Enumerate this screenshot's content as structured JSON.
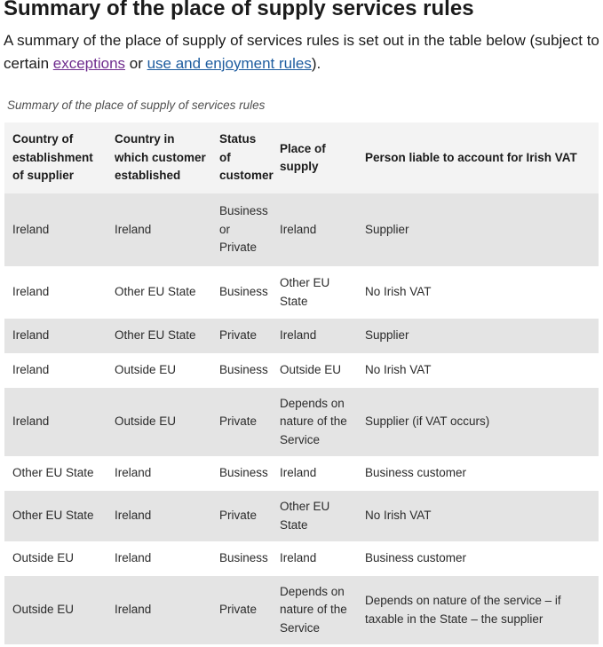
{
  "heading": "Summary of the place of supply services rules",
  "intro": {
    "text_before": "A summary of the place of supply of services rules is set out in the table below (subject to certain ",
    "link_exceptions": "exceptions",
    "text_middle": " or ",
    "link_use_enjoyment": "use and enjoyment rules",
    "text_after": ")."
  },
  "caption": "Summary of the place of supply of services rules",
  "columns": [
    "Country of establishment of supplier",
    "Country in which customer established",
    "Status of customer",
    "Place of supply",
    "Person liable to account for Irish VAT"
  ],
  "rows": [
    [
      "Ireland",
      "Ireland",
      "Business or Private",
      "Ireland",
      "Supplier"
    ],
    [
      "Ireland",
      "Other EU State",
      "Business",
      "Other EU State",
      "No Irish VAT"
    ],
    [
      "Ireland",
      "Other EU State",
      "Private",
      "Ireland",
      "Supplier"
    ],
    [
      "Ireland",
      "Outside EU",
      "Business",
      "Outside EU",
      "No Irish VAT"
    ],
    [
      "Ireland",
      "Outside EU",
      "Private",
      "Depends on nature of the Service",
      "Supplier (if VAT occurs)"
    ],
    [
      "Other EU State",
      "Ireland",
      "Business",
      "Ireland",
      "Business customer"
    ],
    [
      "Other EU State",
      "Ireland",
      "Private",
      "Other EU State",
      "No Irish VAT"
    ],
    [
      "Outside EU",
      "Ireland",
      "Business",
      "Ireland",
      "Business customer"
    ],
    [
      "Outside EU",
      "Ireland",
      "Private",
      "Depends on nature of the Service",
      "Depends on nature of the service – if taxable in the State – the supplier"
    ]
  ]
}
